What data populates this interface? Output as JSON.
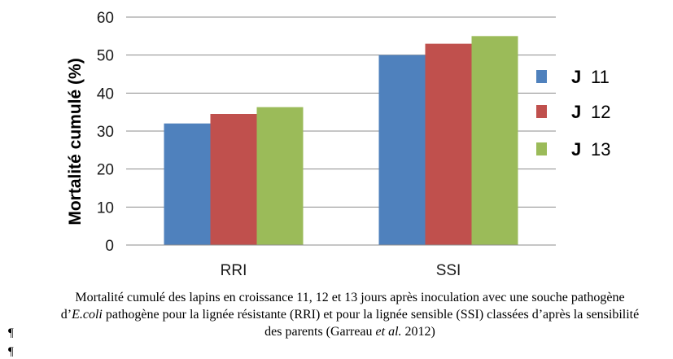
{
  "chart_data": {
    "type": "bar",
    "categories": [
      "RRI",
      "SSI"
    ],
    "series": [
      {
        "name": "J 11",
        "values": [
          32,
          50
        ],
        "color": "#4f81bd"
      },
      {
        "name": "J 12",
        "values": [
          34.5,
          53
        ],
        "color": "#c0504d"
      },
      {
        "name": "J 13",
        "values": [
          36.3,
          55
        ],
        "color": "#9bbb59"
      }
    ],
    "title": "",
    "xlabel": "",
    "ylabel": "Mortalité cumulé (%)",
    "ylim": [
      0,
      60
    ],
    "yticks": [
      0,
      10,
      20,
      30,
      40,
      50,
      60
    ],
    "grid": true,
    "legend_position": "right"
  },
  "legend": {
    "items": [
      {
        "prefix": "J",
        "num": "11"
      },
      {
        "prefix": "J",
        "num": "12"
      },
      {
        "prefix": "J",
        "num": "13"
      }
    ]
  },
  "caption": {
    "part1": "Mortalité cumulé  des lapins en croissance  11, 12 et 13 jours après inoculation avec une souche pathogène d’",
    "italic1": "E.coli",
    "part2": " pathogène pour la lignée résistante (RRI) et pour la lignée sensible (SSI) classées d’après la sensibilité des parents (Garreau ",
    "italic2": "et al.",
    "part3": " 2012)"
  },
  "marks": {
    "pilcrow": "¶"
  }
}
